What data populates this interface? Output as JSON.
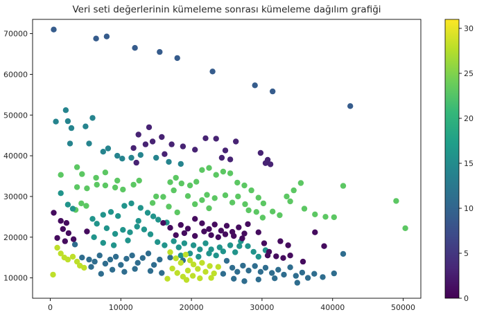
{
  "chart_data": {
    "type": "scatter",
    "title": "Veri seti değerlerinin kümeleme sonrası kümeleme dağılım grafiği",
    "xlabel": "",
    "ylabel": "",
    "xlim": [
      -2500,
      52500
    ],
    "ylim": [
      5000,
      73500
    ],
    "x_ticks": [
      0,
      10000,
      20000,
      30000,
      40000,
      50000
    ],
    "x_tick_labels": [
      "0",
      "10000",
      "20000",
      "30000",
      "40000",
      "50000"
    ],
    "y_ticks": [
      10000,
      20000,
      30000,
      40000,
      50000,
      60000,
      70000
    ],
    "y_tick_labels": [
      "10000",
      "20000",
      "30000",
      "40000",
      "50000",
      "60000",
      "70000"
    ],
    "grid": false,
    "colormap": "viridis",
    "colorbar": {
      "min": 0,
      "max": 31,
      "ticks": [
        0,
        5,
        10,
        15,
        20,
        25,
        30
      ],
      "tick_labels": [
        "0",
        "5",
        "10",
        "15",
        "20",
        "25",
        "30"
      ]
    },
    "points": [
      [
        500,
        71000,
        9
      ],
      [
        6500,
        68800,
        9
      ],
      [
        8000,
        69300,
        9
      ],
      [
        12000,
        66500,
        9
      ],
      [
        15500,
        65500,
        9
      ],
      [
        18000,
        64000,
        9
      ],
      [
        23000,
        60700,
        9
      ],
      [
        29000,
        57300,
        9
      ],
      [
        31500,
        55800,
        9
      ],
      [
        42500,
        52200,
        9
      ],
      [
        800,
        48400,
        14
      ],
      [
        2200,
        51200,
        14
      ],
      [
        2500,
        48500,
        14
      ],
      [
        3000,
        46800,
        14
      ],
      [
        5000,
        47200,
        14
      ],
      [
        6000,
        49300,
        14
      ],
      [
        2800,
        43000,
        14
      ],
      [
        5500,
        43000,
        14
      ],
      [
        7500,
        41000,
        14
      ],
      [
        8200,
        41800,
        14
      ],
      [
        9500,
        40000,
        14
      ],
      [
        10200,
        39300,
        14
      ],
      [
        11500,
        39500,
        14
      ],
      [
        12800,
        40200,
        14
      ],
      [
        15000,
        39500,
        14
      ],
      [
        16800,
        38500,
        14
      ],
      [
        18500,
        38000,
        14
      ],
      [
        14000,
        47000,
        3
      ],
      [
        12500,
        45200,
        3
      ],
      [
        11800,
        41900,
        3
      ],
      [
        13500,
        42800,
        3
      ],
      [
        14500,
        43500,
        3
      ],
      [
        15800,
        44600,
        3
      ],
      [
        17200,
        42800,
        3
      ],
      [
        18800,
        42300,
        3
      ],
      [
        20500,
        41500,
        3
      ],
      [
        22000,
        44300,
        3
      ],
      [
        23500,
        44200,
        3
      ],
      [
        24800,
        41300,
        3
      ],
      [
        26300,
        43500,
        3
      ],
      [
        29800,
        40700,
        3
      ],
      [
        30800,
        39000,
        3
      ],
      [
        31200,
        37900,
        3
      ],
      [
        30500,
        38200,
        3
      ],
      [
        25500,
        39100,
        3
      ],
      [
        24300,
        39500,
        3
      ],
      [
        16200,
        40400,
        3
      ],
      [
        12200,
        38300,
        3
      ],
      [
        3800,
        37200,
        23
      ],
      [
        4500,
        35500,
        23
      ],
      [
        6500,
        34600,
        23
      ],
      [
        7800,
        35900,
        23
      ],
      [
        9500,
        33900,
        23
      ],
      [
        3800,
        32300,
        23
      ],
      [
        5200,
        32000,
        23
      ],
      [
        6600,
        32900,
        23
      ],
      [
        7800,
        32700,
        23
      ],
      [
        9200,
        32200,
        23
      ],
      [
        10300,
        31700,
        23
      ],
      [
        11800,
        32900,
        23
      ],
      [
        12600,
        33900,
        23
      ],
      [
        1500,
        35300,
        23
      ],
      [
        4400,
        28300,
        23
      ],
      [
        5100,
        27700,
        23
      ],
      [
        3600,
        26700,
        23
      ],
      [
        17000,
        33500,
        23
      ],
      [
        17800,
        34600,
        23
      ],
      [
        18600,
        33200,
        23
      ],
      [
        19800,
        32700,
        23
      ],
      [
        20700,
        33600,
        23
      ],
      [
        21500,
        36500,
        23
      ],
      [
        22500,
        37000,
        23
      ],
      [
        23500,
        35300,
        23
      ],
      [
        24500,
        36100,
        23
      ],
      [
        25500,
        35700,
        23
      ],
      [
        26500,
        33400,
        23
      ],
      [
        27500,
        32700,
        23
      ],
      [
        28500,
        31500,
        23
      ],
      [
        29500,
        29700,
        23
      ],
      [
        30200,
        28300,
        23
      ],
      [
        31500,
        26300,
        23
      ],
      [
        32500,
        25400,
        23
      ],
      [
        33500,
        30000,
        23
      ],
      [
        34500,
        31500,
        23
      ],
      [
        35500,
        33300,
        23
      ],
      [
        34000,
        28800,
        23
      ],
      [
        36000,
        27000,
        23
      ],
      [
        37500,
        25600,
        23
      ],
      [
        39000,
        25000,
        23
      ],
      [
        41500,
        32600,
        23
      ],
      [
        49000,
        28900,
        23
      ],
      [
        50300,
        22200,
        23
      ],
      [
        40200,
        24900,
        23
      ],
      [
        16000,
        29900,
        23
      ],
      [
        16800,
        27500,
        23
      ],
      [
        18000,
        26100,
        23
      ],
      [
        17500,
        31500,
        23
      ],
      [
        15000,
        30000,
        23
      ],
      [
        14500,
        28400,
        23
      ],
      [
        19500,
        30100,
        23
      ],
      [
        20500,
        28100,
        23
      ],
      [
        21500,
        29100,
        23
      ],
      [
        22500,
        27100,
        23
      ],
      [
        22200,
        30400,
        23
      ],
      [
        23300,
        29600,
        23
      ],
      [
        24800,
        30300,
        23
      ],
      [
        25800,
        28500,
        23
      ],
      [
        26600,
        30000,
        23
      ],
      [
        27600,
        28100,
        23
      ],
      [
        28100,
        26600,
        23
      ],
      [
        29200,
        26200,
        23
      ],
      [
        30100,
        24800,
        23
      ],
      [
        1500,
        30800,
        16
      ],
      [
        2500,
        28000,
        16
      ],
      [
        3200,
        27000,
        16
      ],
      [
        6000,
        24500,
        16
      ],
      [
        6600,
        23300,
        16
      ],
      [
        7500,
        25500,
        16
      ],
      [
        8600,
        26200,
        16
      ],
      [
        9600,
        25200,
        16
      ],
      [
        10500,
        27700,
        16
      ],
      [
        11500,
        28300,
        16
      ],
      [
        12800,
        27200,
        16
      ],
      [
        13800,
        26000,
        16
      ],
      [
        14600,
        25100,
        16
      ],
      [
        15300,
        24300,
        16
      ],
      [
        16500,
        23600,
        16
      ],
      [
        12500,
        24000,
        16
      ],
      [
        10300,
        21800,
        16
      ],
      [
        11300,
        21200,
        16
      ],
      [
        12300,
        22600,
        16
      ],
      [
        13300,
        21900,
        16
      ],
      [
        14200,
        20700,
        16
      ],
      [
        8000,
        22200,
        16
      ],
      [
        9200,
        20800,
        16
      ],
      [
        6200,
        20000,
        16
      ],
      [
        7500,
        18600,
        16
      ],
      [
        9000,
        18000,
        16
      ],
      [
        11000,
        19200,
        16
      ],
      [
        15200,
        18800,
        16
      ],
      [
        16200,
        18000,
        16
      ],
      [
        17500,
        19000,
        16
      ],
      [
        18200,
        17500,
        16
      ],
      [
        19000,
        18500,
        16
      ],
      [
        20300,
        18000,
        16
      ],
      [
        21200,
        17000,
        16
      ],
      [
        22000,
        18500,
        16
      ],
      [
        22800,
        17000,
        16
      ],
      [
        23500,
        15500,
        16
      ],
      [
        24500,
        16500,
        16
      ],
      [
        25500,
        18000,
        16
      ],
      [
        26200,
        16300,
        16
      ],
      [
        27000,
        19000,
        16
      ],
      [
        28000,
        17800,
        16
      ],
      [
        28800,
        16400,
        16
      ],
      [
        29500,
        15200,
        16
      ],
      [
        30500,
        16800,
        16
      ],
      [
        19800,
        16000,
        16
      ],
      [
        18500,
        15500,
        16
      ],
      [
        21000,
        15200,
        16
      ],
      [
        22500,
        16000,
        16
      ],
      [
        24000,
        17500,
        16
      ],
      [
        26800,
        17800,
        16
      ],
      [
        3500,
        18200,
        11
      ],
      [
        4500,
        15000,
        11
      ],
      [
        5500,
        14500,
        11
      ],
      [
        6300,
        14000,
        11
      ],
      [
        7000,
        15500,
        11
      ],
      [
        7800,
        13500,
        11
      ],
      [
        8500,
        14500,
        11
      ],
      [
        9300,
        15200,
        11
      ],
      [
        10000,
        13200,
        11
      ],
      [
        10800,
        14700,
        11
      ],
      [
        11600,
        15500,
        11
      ],
      [
        12400,
        13700,
        11
      ],
      [
        13100,
        14900,
        11
      ],
      [
        13900,
        16000,
        11
      ],
      [
        14700,
        13200,
        11
      ],
      [
        15500,
        14500,
        11
      ],
      [
        8800,
        12000,
        11
      ],
      [
        10500,
        11500,
        11
      ],
      [
        12000,
        12200,
        11
      ],
      [
        14200,
        11700,
        11
      ],
      [
        15800,
        11200,
        11
      ],
      [
        7200,
        11000,
        11
      ],
      [
        5800,
        12700,
        11
      ],
      [
        25000,
        14200,
        11
      ],
      [
        25800,
        12500,
        11
      ],
      [
        26500,
        11500,
        11
      ],
      [
        27300,
        13000,
        11
      ],
      [
        28100,
        11800,
        11
      ],
      [
        29000,
        12900,
        11
      ],
      [
        29800,
        11500,
        11
      ],
      [
        30500,
        12500,
        11
      ],
      [
        31400,
        11200,
        11
      ],
      [
        32300,
        12000,
        11
      ],
      [
        33100,
        10800,
        11
      ],
      [
        34000,
        12600,
        11
      ],
      [
        34800,
        10500,
        11
      ],
      [
        35700,
        11300,
        11
      ],
      [
        36500,
        10000,
        11
      ],
      [
        37400,
        11000,
        11
      ],
      [
        38600,
        10200,
        11
      ],
      [
        40200,
        11100,
        11
      ],
      [
        41500,
        15900,
        11
      ],
      [
        24500,
        11000,
        11
      ],
      [
        26000,
        9800,
        11
      ],
      [
        27500,
        9200,
        11
      ],
      [
        29500,
        9600,
        11
      ],
      [
        31800,
        9900,
        11
      ],
      [
        35000,
        8800,
        11
      ],
      [
        17000,
        15000,
        11
      ],
      [
        18800,
        14300,
        11
      ],
      [
        500,
        26000,
        1
      ],
      [
        1500,
        24000,
        1
      ],
      [
        2300,
        23500,
        1
      ],
      [
        1800,
        22000,
        1
      ],
      [
        2600,
        21000,
        1
      ],
      [
        1000,
        19800,
        1
      ],
      [
        2100,
        19000,
        1
      ],
      [
        3300,
        19500,
        1
      ],
      [
        5200,
        21400,
        1
      ],
      [
        16000,
        23500,
        1
      ],
      [
        17000,
        22300,
        1
      ],
      [
        18500,
        23000,
        1
      ],
      [
        19500,
        22100,
        1
      ],
      [
        20500,
        24500,
        1
      ],
      [
        21500,
        23400,
        1
      ],
      [
        22500,
        22000,
        1
      ],
      [
        23300,
        23100,
        1
      ],
      [
        24200,
        21600,
        1
      ],
      [
        25000,
        22800,
        1
      ],
      [
        25800,
        21300,
        1
      ],
      [
        26700,
        22400,
        1
      ],
      [
        27500,
        20900,
        1
      ],
      [
        28000,
        23200,
        1
      ],
      [
        17800,
        20500,
        1
      ],
      [
        19000,
        21000,
        1
      ],
      [
        20500,
        20300,
        1
      ],
      [
        21800,
        21400,
        1
      ],
      [
        22800,
        20500,
        1
      ],
      [
        23800,
        20000,
        1
      ],
      [
        24800,
        20700,
        1
      ],
      [
        26000,
        20300,
        1
      ],
      [
        27200,
        19700,
        1
      ],
      [
        29500,
        21200,
        1
      ],
      [
        30300,
        18500,
        1
      ],
      [
        31000,
        16400,
        1
      ],
      [
        32000,
        15300,
        1
      ],
      [
        33000,
        14900,
        1
      ],
      [
        34000,
        15500,
        1
      ],
      [
        35800,
        14000,
        1
      ],
      [
        37500,
        21200,
        1
      ],
      [
        38800,
        17800,
        1
      ],
      [
        30800,
        15500,
        1
      ],
      [
        32600,
        19000,
        1
      ],
      [
        33700,
        18000,
        1
      ],
      [
        1000,
        17400,
        28
      ],
      [
        1500,
        16000,
        28
      ],
      [
        2000,
        15000,
        28
      ],
      [
        2500,
        14500,
        28
      ],
      [
        3200,
        15200,
        28
      ],
      [
        3800,
        14000,
        28
      ],
      [
        4200,
        13000,
        28
      ],
      [
        4800,
        12500,
        28
      ],
      [
        400,
        10800,
        28
      ],
      [
        17000,
        16300,
        28
      ],
      [
        17800,
        14800,
        28
      ],
      [
        18500,
        13700,
        28
      ],
      [
        19200,
        15700,
        28
      ],
      [
        19800,
        14300,
        28
      ],
      [
        20300,
        13300,
        28
      ],
      [
        20900,
        12200,
        28
      ],
      [
        21500,
        13700,
        28
      ],
      [
        22000,
        11500,
        28
      ],
      [
        22600,
        12900,
        28
      ],
      [
        23200,
        11100,
        28
      ],
      [
        23800,
        12700,
        28
      ],
      [
        17300,
        12300,
        28
      ],
      [
        18000,
        11200,
        28
      ],
      [
        18800,
        10300,
        28
      ],
      [
        19500,
        11800,
        28
      ],
      [
        20200,
        10500,
        28
      ],
      [
        21200,
        9900,
        28
      ],
      [
        22800,
        10000,
        28
      ],
      [
        16600,
        9800,
        28
      ],
      [
        19300,
        9500,
        28
      ]
    ]
  }
}
